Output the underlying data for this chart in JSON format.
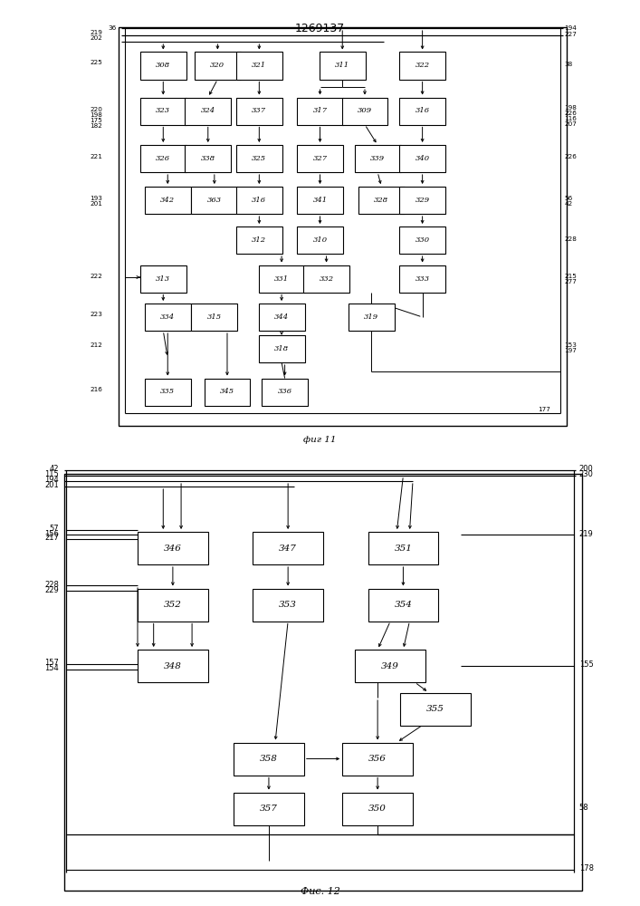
{
  "title": "1269137",
  "fig11_label": "фиг 11",
  "fig12_label": "Фис. 12",
  "bg": "#ffffff",
  "line_color": "#000000"
}
